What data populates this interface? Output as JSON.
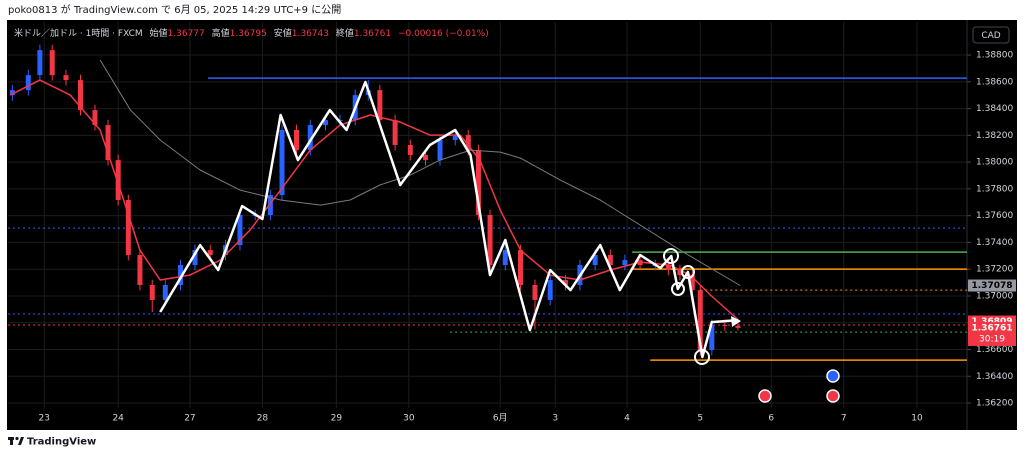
{
  "header": "poko0813 が TradingView.com で 6月 05, 2025 14:29 UTC+9 に公開",
  "footer_logo": "TradingView",
  "chart_data": {
    "type": "candlestick",
    "legend": {
      "symbol": "米ドル／加ドル · 1時間 · FXCM",
      "labels": [
        "始値",
        "高値",
        "安値",
        "終値"
      ],
      "change": "−0.00016 (−0.01%)"
    },
    "currency": "CAD",
    "countdown": "30:19",
    "up_color": "#2962ff",
    "down_color": "#f23645",
    "x": [
      -0.44,
      -0.22,
      -0.06,
      0.11,
      0.3,
      0.5,
      0.7,
      0.88,
      1.02,
      1.16,
      1.32,
      1.49,
      1.67,
      1.88,
      2.08,
      2.29,
      2.5,
      2.7,
      2.91,
      3.12,
      3.28,
      3.48,
      3.67,
      3.88,
      4.08,
      4.29,
      4.47,
      4.63,
      4.84,
      5.05,
      5.26,
      5.46,
      5.67,
      5.85,
      5.99,
      6.15,
      6.36,
      6.57,
      6.77,
      6.98,
      7.19,
      7.39,
      7.6,
      7.81,
      8.01,
      8.22,
      8.43,
      8.61,
      8.77,
      8.94,
      9.05,
      9.21,
      9.39,
      9.57
    ],
    "open": [
      1.385,
      1.38538,
      1.3865,
      1.38837,
      1.3865,
      1.38613,
      1.38389,
      1.38277,
      1.38015,
      1.37717,
      1.37306,
      1.37082,
      1.3697,
      1.37082,
      1.37231,
      1.37343,
      1.37306,
      1.3738,
      1.37605,
      1.37605,
      1.37754,
      1.3824,
      1.3809,
      1.38277,
      1.38314,
      1.38314,
      1.38501,
      1.38538,
      1.38314,
      1.38128,
      1.38053,
      1.38015,
      1.38165,
      1.38202,
      1.3809,
      1.37605,
      1.37231,
      1.37343,
      1.37082,
      1.3697,
      1.37119,
      1.37082,
      1.37231,
      1.37306,
      1.37231,
      1.37268,
      1.37231,
      1.37231,
      1.37194,
      1.37156,
      1.37044,
      1.36596,
      1.36783,
      1.36777
    ],
    "high": [
      1.38578,
      1.3869,
      1.38877,
      1.38877,
      1.3869,
      1.38653,
      1.38429,
      1.38317,
      1.38055,
      1.37757,
      1.37346,
      1.37122,
      1.37122,
      1.37271,
      1.37383,
      1.37383,
      1.3742,
      1.37645,
      1.37645,
      1.37794,
      1.3828,
      1.3828,
      1.38317,
      1.38354,
      1.38354,
      1.38541,
      1.38613,
      1.38578,
      1.38354,
      1.38168,
      1.38093,
      1.38205,
      1.38242,
      1.38242,
      1.3813,
      1.37645,
      1.37383,
      1.37383,
      1.37122,
      1.37159,
      1.37159,
      1.37271,
      1.37346,
      1.37346,
      1.37308,
      1.37308,
      1.37271,
      1.37271,
      1.37234,
      1.37196,
      1.37084,
      1.36823,
      1.36823,
      1.36795
    ],
    "low": [
      1.3846,
      1.38498,
      1.3861,
      1.3861,
      1.38573,
      1.38349,
      1.38237,
      1.37975,
      1.37677,
      1.37266,
      1.37042,
      1.3688,
      1.3693,
      1.37042,
      1.37191,
      1.37266,
      1.37266,
      1.3734,
      1.37565,
      1.37565,
      1.37714,
      1.3805,
      1.3805,
      1.38237,
      1.38274,
      1.38274,
      1.38461,
      1.38274,
      1.38088,
      1.38013,
      1.37975,
      1.37975,
      1.38125,
      1.3805,
      1.37565,
      1.37191,
      1.37191,
      1.37042,
      1.3675,
      1.3693,
      1.37042,
      1.37042,
      1.37191,
      1.37191,
      1.37191,
      1.37191,
      1.37191,
      1.37154,
      1.37116,
      1.37004,
      1.36556,
      1.36556,
      1.36737,
      1.36743
    ],
    "close": [
      1.38538,
      1.3865,
      1.38837,
      1.3865,
      1.38613,
      1.38389,
      1.38277,
      1.38015,
      1.37717,
      1.37306,
      1.37082,
      1.3697,
      1.37082,
      1.37231,
      1.37343,
      1.37306,
      1.3738,
      1.37605,
      1.37605,
      1.37754,
      1.3824,
      1.3809,
      1.38277,
      1.38314,
      1.38314,
      1.38501,
      1.38538,
      1.38314,
      1.38128,
      1.38053,
      1.38015,
      1.38165,
      1.38202,
      1.3809,
      1.37605,
      1.37231,
      1.37343,
      1.37082,
      1.3697,
      1.37119,
      1.37082,
      1.37231,
      1.37306,
      1.37231,
      1.37268,
      1.37231,
      1.37231,
      1.37194,
      1.37156,
      1.37044,
      1.36596,
      1.36783,
      1.36777,
      1.36761
    ],
    "close_label_color": "#f23645",
    "lines": [
      {
        "color": "#f23645",
        "width": 1.5,
        "label_color": "#f23645",
        "x": [
          -0.47,
          -0.06,
          0.36,
          0.77,
          1.05,
          1.32,
          1.6,
          2.01,
          2.43,
          2.84,
          3.26,
          3.67,
          4.08,
          4.5,
          4.91,
          5.32,
          5.74,
          6.01,
          6.29,
          6.57,
          6.98,
          7.39,
          7.81,
          8.22,
          8.63,
          8.91,
          9.19,
          9.6
        ],
        "values": [
          1.38501,
          1.38613,
          1.38501,
          1.3824,
          1.37791,
          1.37343,
          1.37119,
          1.37156,
          1.37268,
          1.37493,
          1.37791,
          1.3809,
          1.38277,
          1.38352,
          1.38299,
          1.38202,
          1.38202,
          1.38015,
          1.37642,
          1.37343,
          1.37156,
          1.37119,
          1.37194,
          1.37253,
          1.37231,
          1.37156,
          1.37007,
          1.36809
        ]
      },
      {
        "color": "#787b86",
        "width": 1,
        "label_color": "#9598a1",
        "x": [
          0.77,
          1.19,
          1.6,
          2.15,
          2.7,
          3.26,
          3.81,
          4.22,
          4.63,
          5.05,
          5.46,
          5.88,
          6.29,
          6.57,
          7.12,
          7.67,
          8.22,
          8.77,
          9.19,
          9.6
        ],
        "values": [
          1.38763,
          1.38389,
          1.38165,
          1.37941,
          1.37791,
          1.37717,
          1.37679,
          1.37717,
          1.37829,
          1.37903,
          1.38015,
          1.3809,
          1.38075,
          1.3803,
          1.37866,
          1.37717,
          1.3753,
          1.37343,
          1.37209,
          1.37078
        ]
      }
    ],
    "zigzag": {
      "color": "#ffffff",
      "x": [
        1.6,
        2.15,
        2.4,
        2.73,
        3.01,
        3.26,
        3.5,
        3.94,
        4.17,
        4.43,
        4.91,
        5.32,
        5.67,
        5.88,
        6.15,
        6.36,
        6.7,
        6.98,
        7.26,
        7.67,
        7.94,
        8.22,
        8.5,
        8.65,
        8.74,
        8.88,
        9.08,
        9.21,
        9.57
      ],
      "values": [
        1.3688,
        1.3738,
        1.37194,
        1.37672,
        1.37575,
        1.38352,
        1.38015,
        1.38389,
        1.3824,
        1.38598,
        1.37829,
        1.38128,
        1.3824,
        1.38053,
        1.37156,
        1.37418,
        1.36745,
        1.37194,
        1.37044,
        1.3738,
        1.37044,
        1.37306,
        1.37209,
        1.37298,
        1.37052,
        1.37179,
        1.36544,
        1.36805,
        1.3682
      ]
    },
    "levels": [
      {
        "value": 1.38628,
        "color": "#2962ff",
        "dashed": false,
        "from": 2.26
      },
      {
        "value": 1.37507,
        "color": "#2962ff",
        "dashed": true
      },
      {
        "value": 1.36865,
        "color": "#2962ff",
        "dashed": true
      },
      {
        "value": 1.36783,
        "color": "#f23645",
        "dashed": true
      },
      {
        "value": 1.37328,
        "color": "#4caf50",
        "dashed": false,
        "from": 8.11
      },
      {
        "value": 1.37201,
        "color": "#ff9800",
        "dashed": false,
        "from": 8.11
      },
      {
        "value": 1.37044,
        "color": "#ff9800",
        "dashed": true,
        "from": 9.05
      },
      {
        "value": 1.36521,
        "color": "#ff9800",
        "dashed": false,
        "from": 8.36
      },
      {
        "value": 1.3673,
        "color": "#4caf50",
        "dashed": true,
        "from": 5.6
      }
    ],
    "xlim": [
      -0.5,
      12.73
    ],
    "ylim": [
      1.36021,
      1.39047
    ],
    "xticks": [
      {
        "value": 0,
        "label": "23"
      },
      {
        "value": 1.02,
        "label": "24"
      },
      {
        "value": 2.01,
        "label": "27"
      },
      {
        "value": 3.01,
        "label": "28"
      },
      {
        "value": 4.03,
        "label": "29"
      },
      {
        "value": 5.03,
        "label": "30"
      },
      {
        "value": 6.29,
        "label": "6月"
      },
      {
        "value": 7.05,
        "label": "3"
      },
      {
        "value": 8.04,
        "label": "4"
      },
      {
        "value": 9.05,
        "label": "5"
      },
      {
        "value": 10.03,
        "label": "6"
      },
      {
        "value": 11.03,
        "label": "7"
      },
      {
        "value": 12.04,
        "label": "10"
      }
    ],
    "yticks": [
      {
        "value": 1.362,
        "label": "1.36200"
      },
      {
        "value": 1.364,
        "label": "1.36400"
      },
      {
        "value": 1.366,
        "label": "1.36600"
      },
      {
        "value": 1.368,
        "label": "1.36800"
      },
      {
        "value": 1.37,
        "label": "1.37000"
      },
      {
        "value": 1.372,
        "label": "1.37200"
      },
      {
        "value": 1.374,
        "label": "1.37400"
      },
      {
        "value": 1.376,
        "label": "1.37600"
      },
      {
        "value": 1.378,
        "label": "1.37800"
      },
      {
        "value": 1.38,
        "label": "1.38000"
      },
      {
        "value": 1.382,
        "label": "1.38200"
      },
      {
        "value": 1.384,
        "label": "1.38400"
      },
      {
        "value": 1.386,
        "label": "1.38600"
      },
      {
        "value": 1.388,
        "label": "1.38800"
      }
    ],
    "grid": true
  }
}
